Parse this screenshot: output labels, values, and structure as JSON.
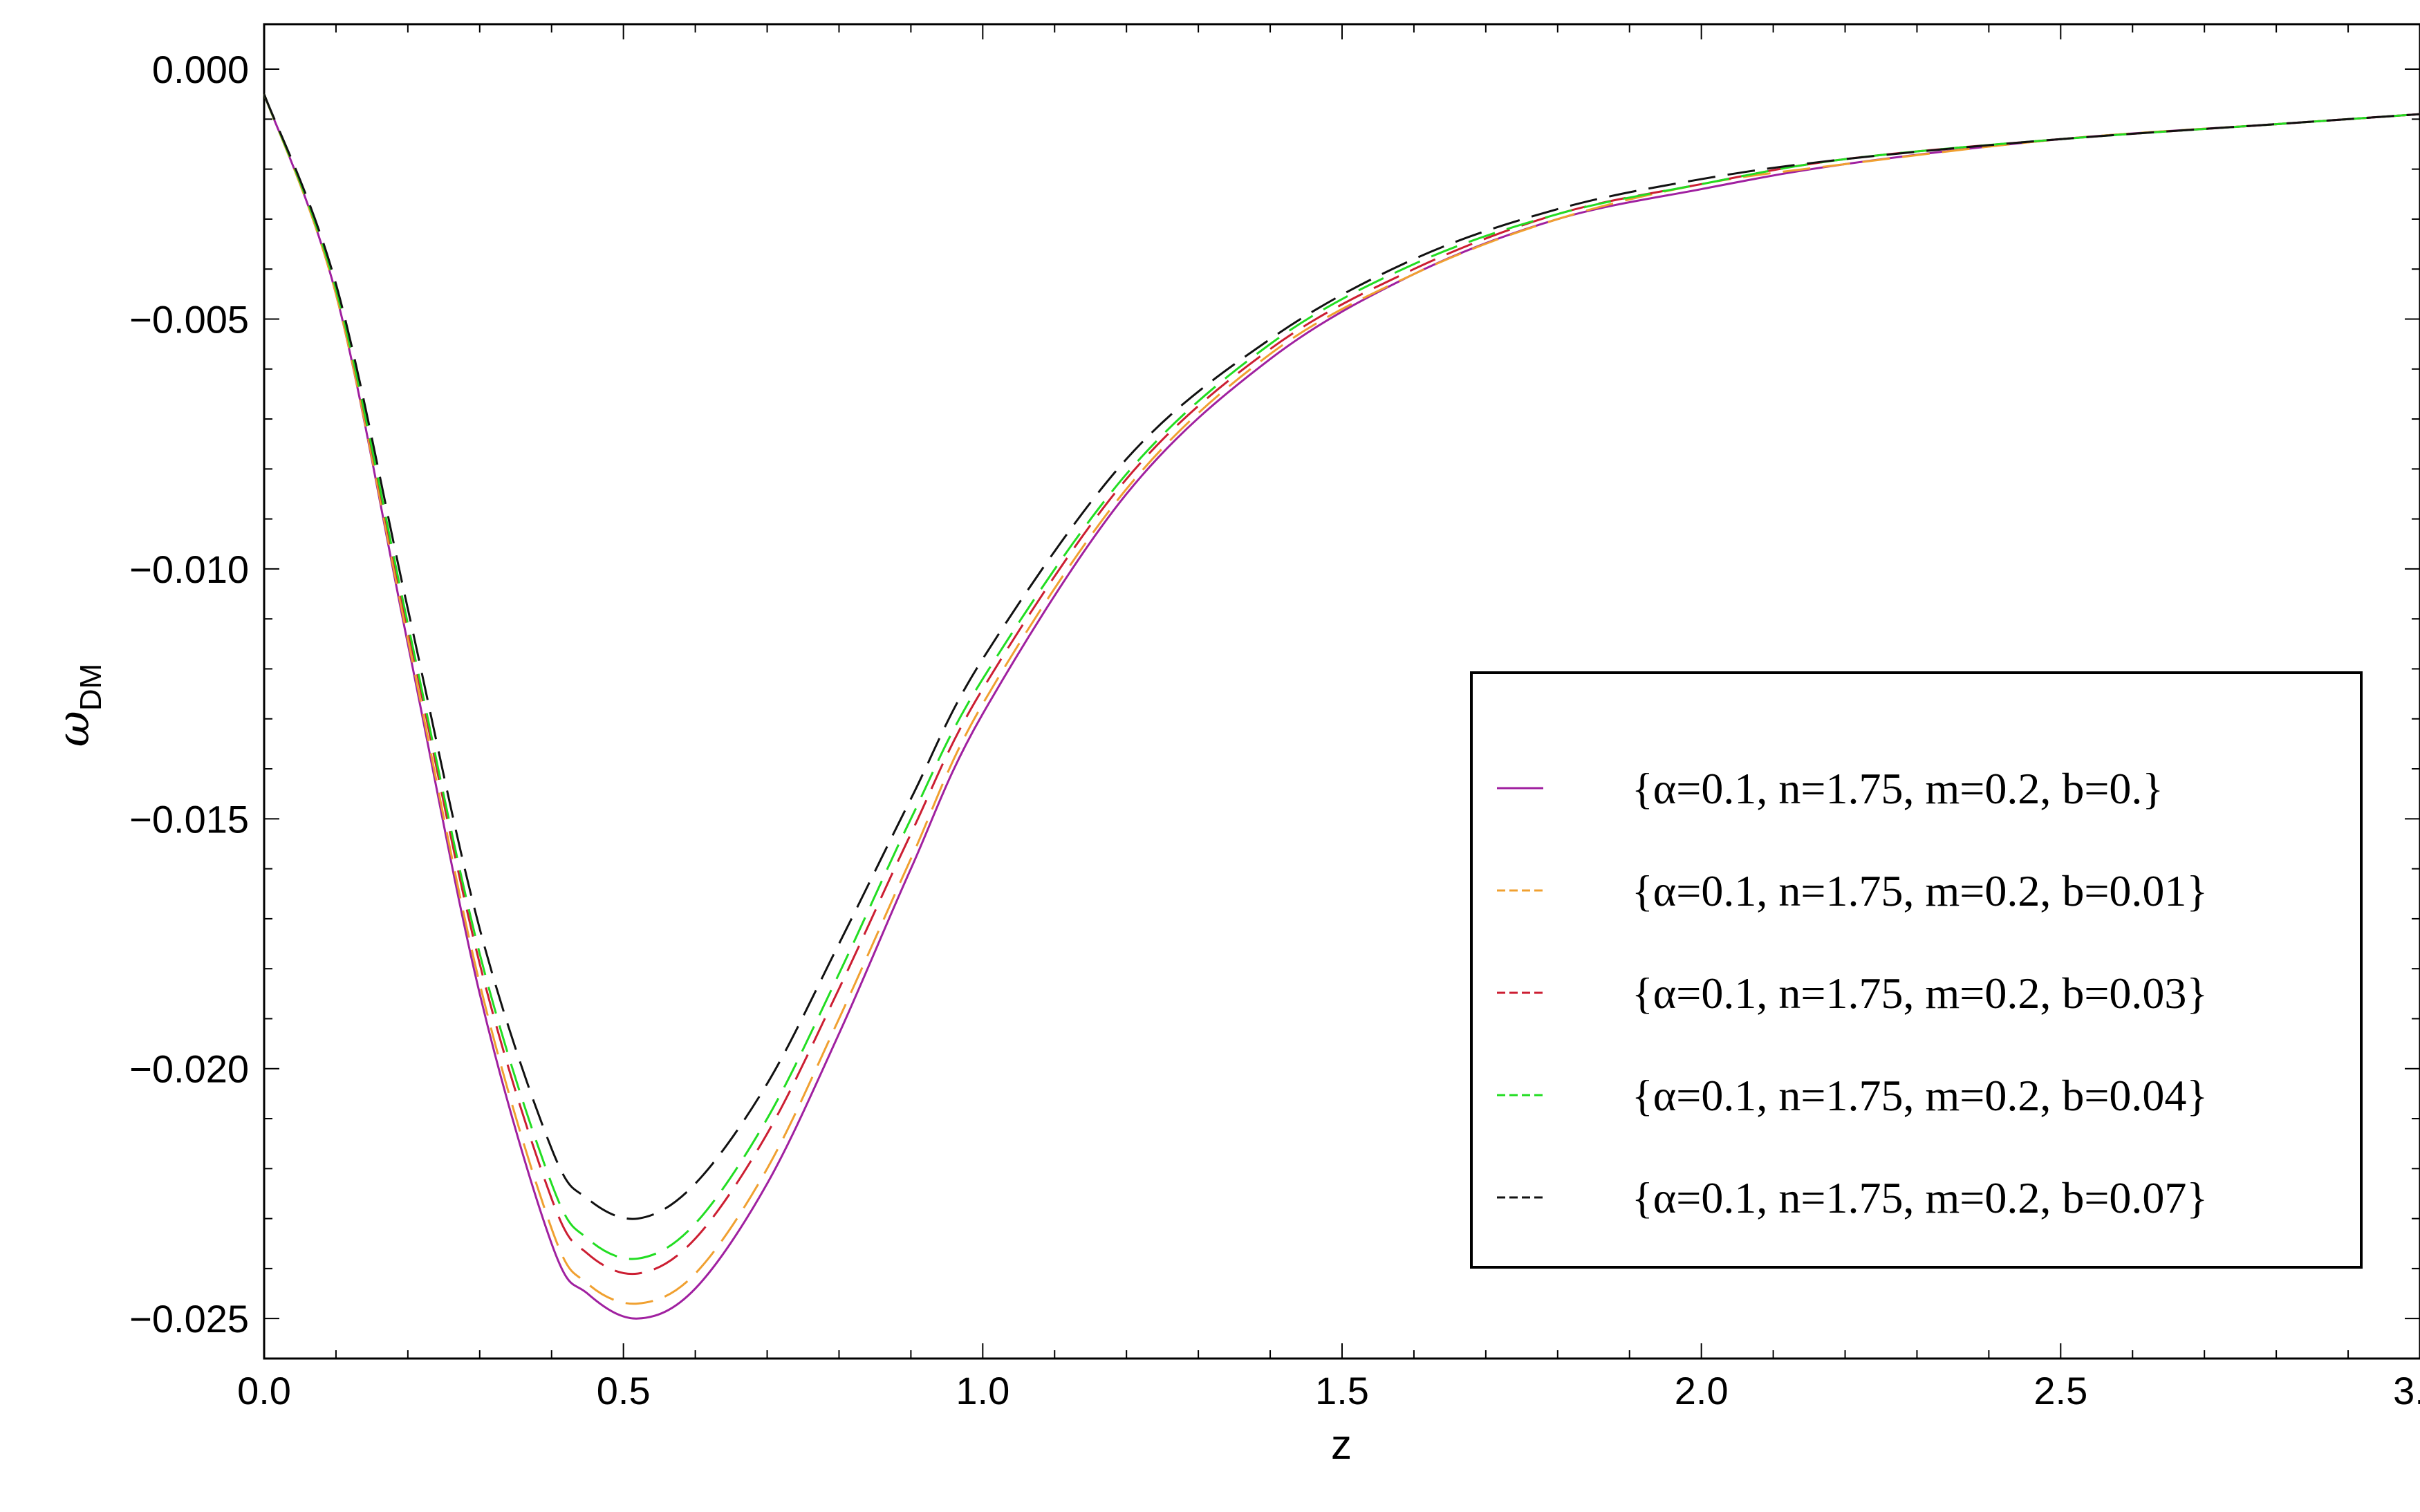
{
  "chart_data": {
    "type": "line",
    "title": "",
    "xlabel": "z",
    "ylabel": "ω",
    "ylabel_sub": "DM",
    "xlim": [
      0.0,
      3.0
    ],
    "ylim": [
      -0.0258,
      0.0009
    ],
    "xticks": [
      0.0,
      0.5,
      1.0,
      1.5,
      2.0,
      2.5,
      3.0
    ],
    "xtick_labels": [
      "0.0",
      "0.5",
      "1.0",
      "1.5",
      "2.0",
      "2.5",
      "3.0"
    ],
    "yticks": [
      0.0,
      -0.005,
      -0.01,
      -0.015,
      -0.02,
      -0.025
    ],
    "ytick_labels": [
      "0.000",
      "−0.005",
      "−0.010",
      "−0.015",
      "−0.020",
      "−0.025"
    ],
    "grid": false,
    "legend_position": "lower-right",
    "x": [
      0.0,
      0.1,
      0.2,
      0.3,
      0.4,
      0.45,
      0.52,
      0.6,
      0.7,
      0.8,
      0.9,
      1.0,
      1.2,
      1.4,
      1.6,
      1.8,
      2.0,
      2.2,
      2.5,
      2.8,
      3.0
    ],
    "series": [
      {
        "name": "{α=0.1, n=1.75, m=0.2, b=0.}",
        "color": "#a020a0",
        "dash": "solid",
        "values": [
          -0.0005,
          -0.0045,
          -0.0115,
          -0.0185,
          -0.0235,
          -0.0245,
          -0.025,
          -0.0244,
          -0.0223,
          -0.0193,
          -0.016,
          -0.0129,
          -0.0085,
          -0.0058,
          -0.0041,
          -0.003,
          -0.0024,
          -0.0019,
          -0.0014,
          -0.0011,
          -0.0009
        ]
      },
      {
        "name": "{α=0.1, n=1.75, m=0.2, b=0.01}",
        "color": "#f0a030",
        "dash": "long",
        "values": [
          -0.0005,
          -0.0045,
          -0.0114,
          -0.0183,
          -0.0232,
          -0.0243,
          -0.0247,
          -0.0241,
          -0.022,
          -0.019,
          -0.0158,
          -0.0127,
          -0.0084,
          -0.0057,
          -0.0041,
          -0.003,
          -0.0023,
          -0.0019,
          -0.0014,
          -0.0011,
          -0.0009
        ]
      },
      {
        "name": "{α=0.1, n=1.75, m=0.2, b=0.03}",
        "color": "#cc1e32",
        "dash": "long",
        "values": [
          -0.0005,
          -0.0044,
          -0.0112,
          -0.0179,
          -0.0226,
          -0.0237,
          -0.0241,
          -0.0234,
          -0.0213,
          -0.0184,
          -0.0153,
          -0.0124,
          -0.0082,
          -0.0056,
          -0.004,
          -0.0029,
          -0.0023,
          -0.0018,
          -0.0014,
          -0.0011,
          -0.0009
        ]
      },
      {
        "name": "{α=0.1, n=1.75, m=0.2, b=0.04}",
        "color": "#22dd22",
        "dash": "long",
        "values": [
          -0.0005,
          -0.0044,
          -0.0111,
          -0.0177,
          -0.0223,
          -0.0234,
          -0.0238,
          -0.0231,
          -0.021,
          -0.0181,
          -0.015,
          -0.0122,
          -0.0081,
          -0.0055,
          -0.0039,
          -0.0029,
          -0.0023,
          -0.0018,
          -0.0014,
          -0.0011,
          -0.0009
        ]
      },
      {
        "name": "{α=0.1, n=1.75, m=0.2, b=0.07}",
        "color": "#111111",
        "dash": "long",
        "values": [
          -0.0005,
          -0.0043,
          -0.0108,
          -0.0172,
          -0.0216,
          -0.0226,
          -0.023,
          -0.0223,
          -0.0203,
          -0.0175,
          -0.0146,
          -0.0118,
          -0.0078,
          -0.0054,
          -0.0038,
          -0.0028,
          -0.0022,
          -0.0018,
          -0.0014,
          -0.0011,
          -0.0009
        ]
      }
    ]
  }
}
